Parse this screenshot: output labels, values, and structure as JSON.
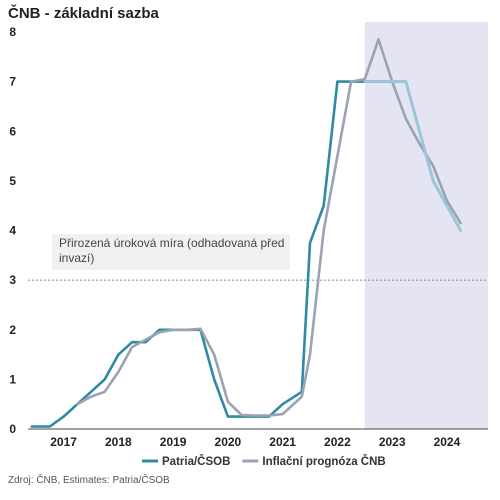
{
  "title": "ČNB - základní sazba",
  "source": "Zdroj: ČNB, Estimates: Patria/ČSOB",
  "chart_data": {
    "type": "line",
    "title": "ČNB - základní sazba",
    "xlabel": "",
    "ylabel": "",
    "ylim": [
      0,
      8
    ],
    "yticks": [
      "0",
      "1",
      "2",
      "3",
      "4",
      "5",
      "6",
      "7",
      "8"
    ],
    "xlim": [
      2016.6,
      2025.0
    ],
    "xticks": [
      {
        "label": "2017",
        "x": 2017.25
      },
      {
        "label": "2018",
        "x": 2018.25
      },
      {
        "label": "2019",
        "x": 2019.25
      },
      {
        "label": "2020",
        "x": 2020.25
      },
      {
        "label": "2021",
        "x": 2021.25
      },
      {
        "label": "2022",
        "x": 2022.25
      },
      {
        "label": "2023",
        "x": 2023.25
      },
      {
        "label": "2024",
        "x": 2024.25
      }
    ],
    "reference_line": {
      "y": 3
    },
    "forecast_region": {
      "x_start": 2022.75,
      "x_end": 2025.0,
      "color": "#e5e4f3"
    },
    "annotation": {
      "lines": [
        "Přirozená úroková míra (odhadovaná před",
        "invazí)"
      ]
    },
    "legend_position": "bottom",
    "series": [
      {
        "name": "Patria/ČSOB",
        "color": "#2f8aa3",
        "points": [
          [
            2016.67,
            0.05
          ],
          [
            2017.0,
            0.05
          ],
          [
            2017.25,
            0.25
          ],
          [
            2017.5,
            0.5
          ],
          [
            2017.75,
            0.75
          ],
          [
            2018.0,
            1.0
          ],
          [
            2018.25,
            1.5
          ],
          [
            2018.5,
            1.75
          ],
          [
            2018.75,
            1.75
          ],
          [
            2019.0,
            2.0
          ],
          [
            2019.25,
            2.0
          ],
          [
            2019.5,
            2.0
          ],
          [
            2019.75,
            2.0
          ],
          [
            2020.0,
            1.0
          ],
          [
            2020.25,
            0.25
          ],
          [
            2020.5,
            0.25
          ],
          [
            2020.75,
            0.25
          ],
          [
            2021.0,
            0.25
          ],
          [
            2021.25,
            0.5
          ],
          [
            2021.6,
            0.75
          ],
          [
            2021.75,
            3.75
          ],
          [
            2022.0,
            4.5
          ],
          [
            2022.25,
            7.0
          ],
          [
            2022.5,
            7.0
          ],
          [
            2022.75,
            7.0
          ],
          [
            2023.0,
            7.0
          ],
          [
            2023.25,
            7.0
          ],
          [
            2023.5,
            7.0
          ],
          [
            2023.75,
            6.0
          ],
          [
            2024.0,
            5.0
          ],
          [
            2024.25,
            4.5
          ],
          [
            2024.5,
            4.0
          ]
        ]
      },
      {
        "name": "Inflační prognóza ČNB",
        "color": "#9aa3b2",
        "points": [
          [
            2017.5,
            0.5
          ],
          [
            2017.75,
            0.65
          ],
          [
            2018.0,
            0.75
          ],
          [
            2018.25,
            1.15
          ],
          [
            2018.5,
            1.65
          ],
          [
            2018.75,
            1.8
          ],
          [
            2019.0,
            1.95
          ],
          [
            2019.25,
            2.0
          ],
          [
            2019.5,
            2.0
          ],
          [
            2019.75,
            2.02
          ],
          [
            2020.0,
            1.5
          ],
          [
            2020.25,
            0.55
          ],
          [
            2020.5,
            0.28
          ],
          [
            2020.75,
            0.27
          ],
          [
            2021.0,
            0.27
          ],
          [
            2021.25,
            0.3
          ],
          [
            2021.6,
            0.65
          ],
          [
            2021.75,
            1.5
          ],
          [
            2022.0,
            4.0
          ],
          [
            2022.25,
            5.5
          ],
          [
            2022.5,
            7.0
          ],
          [
            2022.75,
            7.05
          ],
          [
            2023.0,
            7.85
          ],
          [
            2023.25,
            7.0
          ],
          [
            2023.5,
            6.25
          ],
          [
            2023.75,
            5.75
          ],
          [
            2024.0,
            5.3
          ],
          [
            2024.25,
            4.6
          ],
          [
            2024.5,
            4.15
          ]
        ]
      },
      {
        "name": "",
        "color": "#9ac8d8",
        "points": [
          [
            2022.75,
            7.0
          ],
          [
            2023.0,
            7.0
          ],
          [
            2023.25,
            7.0
          ],
          [
            2023.5,
            7.0
          ],
          [
            2023.75,
            6.0
          ],
          [
            2024.0,
            5.0
          ],
          [
            2024.25,
            4.5
          ],
          [
            2024.5,
            4.0
          ]
        ]
      }
    ]
  }
}
